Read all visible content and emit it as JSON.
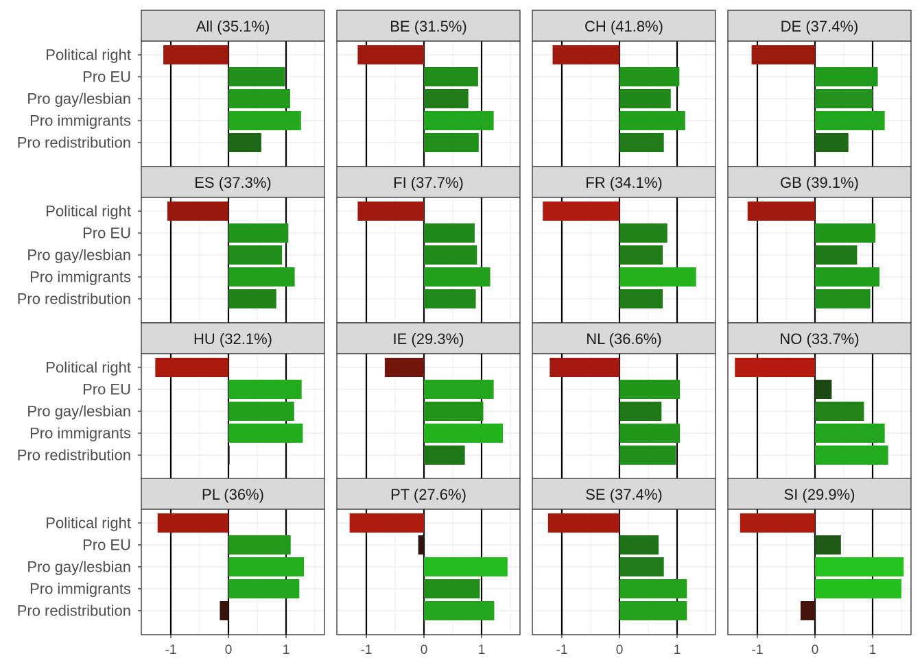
{
  "chart_data": {
    "type": "bar",
    "orientation": "horizontal",
    "facet_layout": "4 x 4 grid",
    "categories": [
      "Political right",
      "Pro EU",
      "Pro gay/lesbian",
      "Pro immigrants",
      "Pro redistribution"
    ],
    "x_ticks": [
      "-1",
      "0",
      "1"
    ],
    "xlim": [
      -1.5,
      1.66
    ],
    "grid": true,
    "legend": "none",
    "fill_colors": {
      "negative": "#9b1c10",
      "positive": "#24a824",
      "near_zero": "#1e1810"
    },
    "panels": [
      {
        "title": "All (35.1%)",
        "values": [
          -1.13,
          0.98,
          1.07,
          1.26,
          0.57
        ]
      },
      {
        "title": "BE (31.5%)",
        "values": [
          -1.15,
          0.94,
          0.77,
          1.21,
          0.95
        ]
      },
      {
        "title": "CH (41.8%)",
        "values": [
          -1.16,
          1.04,
          0.89,
          1.14,
          0.77
        ]
      },
      {
        "title": "DE (37.4%)",
        "values": [
          -1.1,
          1.09,
          1.0,
          1.21,
          0.58
        ]
      },
      {
        "title": "ES (37.3%)",
        "values": [
          -1.06,
          1.04,
          0.93,
          1.15,
          0.83
        ]
      },
      {
        "title": "FI (37.7%)",
        "values": [
          -1.15,
          0.88,
          0.92,
          1.15,
          0.9
        ]
      },
      {
        "title": "FR (34.1%)",
        "values": [
          -1.33,
          0.83,
          0.75,
          1.33,
          0.75
        ]
      },
      {
        "title": "GB (39.1%)",
        "values": [
          -1.17,
          1.05,
          0.73,
          1.12,
          0.96
        ]
      },
      {
        "title": "HU (32.1%)",
        "values": [
          -1.27,
          1.27,
          1.14,
          1.29,
          0.02
        ]
      },
      {
        "title": "IE (29.3%)",
        "values": [
          -0.68,
          1.21,
          1.03,
          1.37,
          0.71
        ]
      },
      {
        "title": "NL (36.6%)",
        "values": [
          -1.21,
          1.05,
          0.73,
          1.05,
          0.98
        ]
      },
      {
        "title": "NO (33.7%)",
        "values": [
          -1.39,
          0.29,
          0.85,
          1.21,
          1.27
        ]
      },
      {
        "title": "PL (36%)",
        "values": [
          -1.23,
          1.08,
          1.31,
          1.23,
          -0.15
        ]
      },
      {
        "title": "PT (27.6%)",
        "values": [
          -1.29,
          -0.1,
          1.45,
          0.97,
          1.22
        ]
      },
      {
        "title": "SE (37.4%)",
        "values": [
          -1.24,
          0.68,
          0.77,
          1.17,
          1.17
        ]
      },
      {
        "title": "SI (29.9%)",
        "values": [
          -1.3,
          0.45,
          1.54,
          1.5,
          -0.25
        ]
      }
    ]
  }
}
